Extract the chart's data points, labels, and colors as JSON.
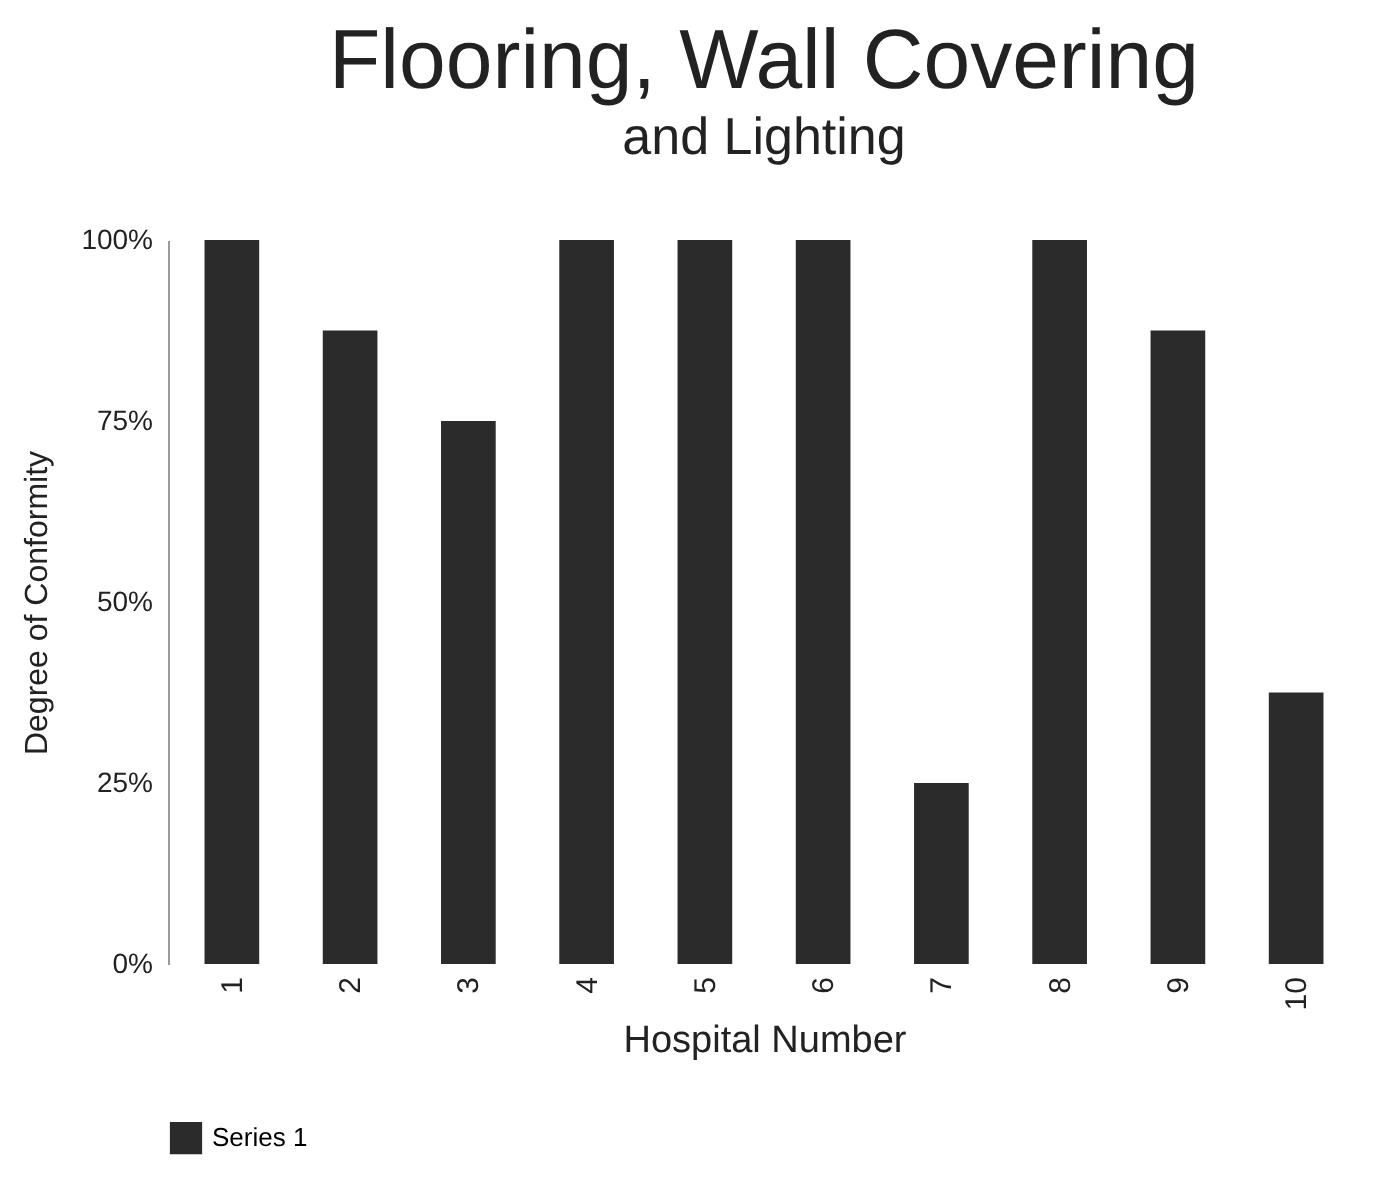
{
  "chart_data": {
    "type": "bar",
    "title": "Flooring, Wall Covering",
    "subtitle": "and Lighting",
    "xlabel": "Hospital Number",
    "ylabel": "Degree of Conformity",
    "categories": [
      "1",
      "2",
      "3",
      "4",
      "5",
      "6",
      "7",
      "8",
      "9",
      "10"
    ],
    "series": [
      {
        "name": "Series 1",
        "color": "#2b2b2b",
        "values": [
          100,
          87.5,
          75,
          100,
          100,
          100,
          25,
          100,
          87.5,
          37.5
        ]
      }
    ],
    "ylim": [
      0,
      100
    ],
    "yticks": [
      {
        "value": 0,
        "label": "0%"
      },
      {
        "value": 25,
        "label": "25%"
      },
      {
        "value": 50,
        "label": "50%"
      },
      {
        "value": 75,
        "label": "75%"
      },
      {
        "value": 100,
        "label": "100%"
      }
    ],
    "grid": false,
    "legend": "bottom"
  }
}
